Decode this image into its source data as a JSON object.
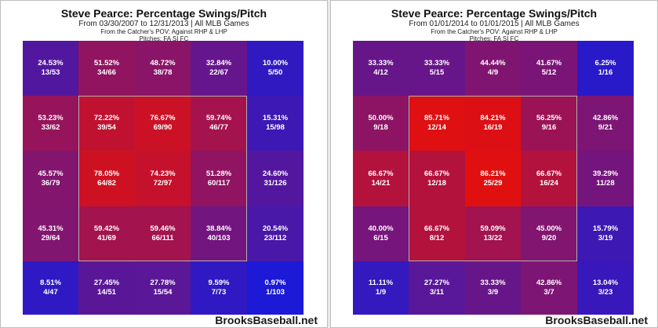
{
  "chart_data": [
    {
      "type": "heatmap",
      "title": "Steve Pearce: Percentage Swings/Pitch",
      "subtitle": "From 03/30/2007 to 12/31/2013 | All MLB Games",
      "subtitle2": "From the Catcher's POV:  Against RHP & LHP",
      "subtitle3": "Pitches: FA  SI  FC",
      "watermark": "BrooksBaseball.net",
      "rows": [
        [
          {
            "pct": "24.53%",
            "frac": "13/53",
            "v": 24.53
          },
          {
            "pct": "51.52%",
            "frac": "34/66",
            "v": 51.52
          },
          {
            "pct": "48.72%",
            "frac": "38/78",
            "v": 48.72
          },
          {
            "pct": "32.84%",
            "frac": "22/67",
            "v": 32.84
          },
          {
            "pct": "10.00%",
            "frac": "5/50",
            "v": 10.0
          }
        ],
        [
          {
            "pct": "53.23%",
            "frac": "33/62",
            "v": 53.23
          },
          {
            "pct": "72.22%",
            "frac": "39/54",
            "v": 72.22
          },
          {
            "pct": "76.67%",
            "frac": "69/90",
            "v": 76.67
          },
          {
            "pct": "59.74%",
            "frac": "46/77",
            "v": 59.74
          },
          {
            "pct": "15.31%",
            "frac": "15/98",
            "v": 15.31
          }
        ],
        [
          {
            "pct": "45.57%",
            "frac": "36/79",
            "v": 45.57
          },
          {
            "pct": "78.05%",
            "frac": "64/82",
            "v": 78.05
          },
          {
            "pct": "74.23%",
            "frac": "72/97",
            "v": 74.23
          },
          {
            "pct": "51.28%",
            "frac": "60/117",
            "v": 51.28
          },
          {
            "pct": "24.60%",
            "frac": "31/126",
            "v": 24.6
          }
        ],
        [
          {
            "pct": "45.31%",
            "frac": "29/64",
            "v": 45.31
          },
          {
            "pct": "59.42%",
            "frac": "41/69",
            "v": 59.42
          },
          {
            "pct": "59.46%",
            "frac": "66/111",
            "v": 59.46
          },
          {
            "pct": "38.84%",
            "frac": "40/103",
            "v": 38.84
          },
          {
            "pct": "20.54%",
            "frac": "23/112",
            "v": 20.54
          }
        ],
        [
          {
            "pct": "8.51%",
            "frac": "4/47",
            "v": 8.51
          },
          {
            "pct": "27.45%",
            "frac": "14/51",
            "v": 27.45
          },
          {
            "pct": "27.78%",
            "frac": "15/54",
            "v": 27.78
          },
          {
            "pct": "9.59%",
            "frac": "7/73",
            "v": 9.59
          },
          {
            "pct": "0.97%",
            "frac": "1/103",
            "v": 0.97
          }
        ]
      ]
    },
    {
      "type": "heatmap",
      "title": "Steve Pearce: Percentage Swings/Pitch",
      "subtitle": "From 01/01/2014 to 01/01/2015 | All MLB Games",
      "subtitle2": "From the Catcher's POV:  Against RHP & LHP",
      "subtitle3": "Pitches: FA  SI  FC",
      "watermark": "BrooksBaseball.net",
      "rows": [
        [
          {
            "pct": "33.33%",
            "frac": "4/12",
            "v": 33.33
          },
          {
            "pct": "33.33%",
            "frac": "5/15",
            "v": 33.33
          },
          {
            "pct": "44.44%",
            "frac": "4/9",
            "v": 44.44
          },
          {
            "pct": "41.67%",
            "frac": "5/12",
            "v": 41.67
          },
          {
            "pct": "6.25%",
            "frac": "1/16",
            "v": 6.25
          }
        ],
        [
          {
            "pct": "50.00%",
            "frac": "9/18",
            "v": 50.0
          },
          {
            "pct": "85.71%",
            "frac": "12/14",
            "v": 85.71
          },
          {
            "pct": "84.21%",
            "frac": "16/19",
            "v": 84.21
          },
          {
            "pct": "56.25%",
            "frac": "9/16",
            "v": 56.25
          },
          {
            "pct": "42.86%",
            "frac": "9/21",
            "v": 42.86
          }
        ],
        [
          {
            "pct": "66.67%",
            "frac": "14/21",
            "v": 66.67
          },
          {
            "pct": "66.67%",
            "frac": "12/18",
            "v": 66.67
          },
          {
            "pct": "86.21%",
            "frac": "25/29",
            "v": 86.21
          },
          {
            "pct": "66.67%",
            "frac": "16/24",
            "v": 66.67
          },
          {
            "pct": "39.29%",
            "frac": "11/28",
            "v": 39.29
          }
        ],
        [
          {
            "pct": "40.00%",
            "frac": "6/15",
            "v": 40.0
          },
          {
            "pct": "66.67%",
            "frac": "8/12",
            "v": 66.67
          },
          {
            "pct": "59.09%",
            "frac": "13/22",
            "v": 59.09
          },
          {
            "pct": "45.00%",
            "frac": "9/20",
            "v": 45.0
          },
          {
            "pct": "15.79%",
            "frac": "3/19",
            "v": 15.79
          }
        ],
        [
          {
            "pct": "11.11%",
            "frac": "1/9",
            "v": 11.11
          },
          {
            "pct": "27.27%",
            "frac": "3/11",
            "v": 27.27
          },
          {
            "pct": "33.33%",
            "frac": "3/9",
            "v": 33.33
          },
          {
            "pct": "42.86%",
            "frac": "3/7",
            "v": 42.86
          },
          {
            "pct": "13.04%",
            "frac": "3/23",
            "v": 13.04
          }
        ]
      ]
    }
  ],
  "colors": {
    "cold": "#1a1ad8",
    "hot": "#e01010"
  }
}
